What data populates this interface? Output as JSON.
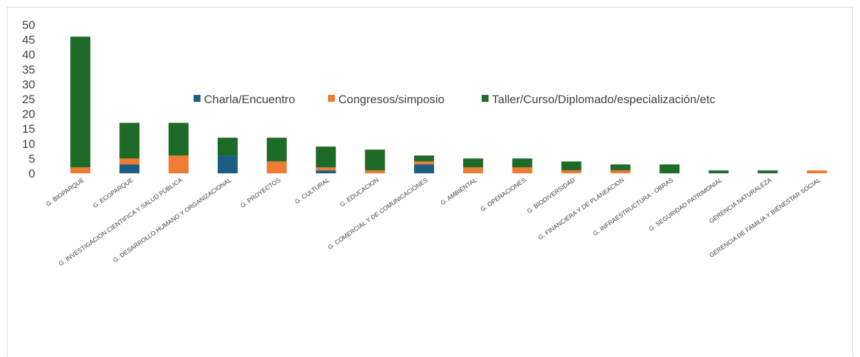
{
  "chart_data": {
    "type": "bar",
    "stacked": true,
    "categories": [
      "G. BIOPARQUE",
      "G. ECOPARQUE",
      "G. INVESTIGACIÓN CIENTIFICA Y SALUD PÚBLICA",
      "G. DESARROLLO HUMANO Y ORGANIZACIONAL",
      "G. PROYECTOS",
      "G. CULTURAL",
      "G. EDUCACION",
      "G. COMERCIAL Y DE COMUNICACIONES",
      "G. AMBIENTAL",
      "G. OPERACIONES",
      "G. BIODIVERSIDAD",
      "G. FINANCIERA Y DE PLANEACION",
      "G. INFRAESTRUCTURA - OBRAS",
      "G. SEGURIDAD PATRIMONIAL",
      "GERENCIA NATURALEZA",
      "GERENCIA DE FAMILIA Y BIENESTAR SOCIAL"
    ],
    "series": [
      {
        "name": "Charla/Encuentro",
        "color": "#1b5e84",
        "values": [
          0,
          3,
          0,
          6,
          0,
          1,
          0,
          3,
          0,
          0,
          0,
          0,
          0,
          0,
          0,
          0
        ]
      },
      {
        "name": "Congresos/simposio",
        "color": "#ef7b34",
        "values": [
          2,
          2,
          6,
          0,
          4,
          1,
          1,
          1,
          2,
          2,
          1,
          1,
          0,
          0,
          0,
          1
        ]
      },
      {
        "name": "Taller/Curso/Diplomado/especialización/etc",
        "color": "#1e6b28",
        "values": [
          44,
          12,
          11,
          6,
          8,
          7,
          7,
          2,
          3,
          3,
          3,
          2,
          3,
          1,
          1,
          0
        ]
      }
    ],
    "yticks": [
      "0",
      "5",
      "10",
      "15",
      "20",
      "25",
      "30",
      "35",
      "40",
      "45",
      "50"
    ],
    "ylim": [
      0,
      50
    ],
    "grid": false,
    "legend_position": "inside-top-center"
  }
}
